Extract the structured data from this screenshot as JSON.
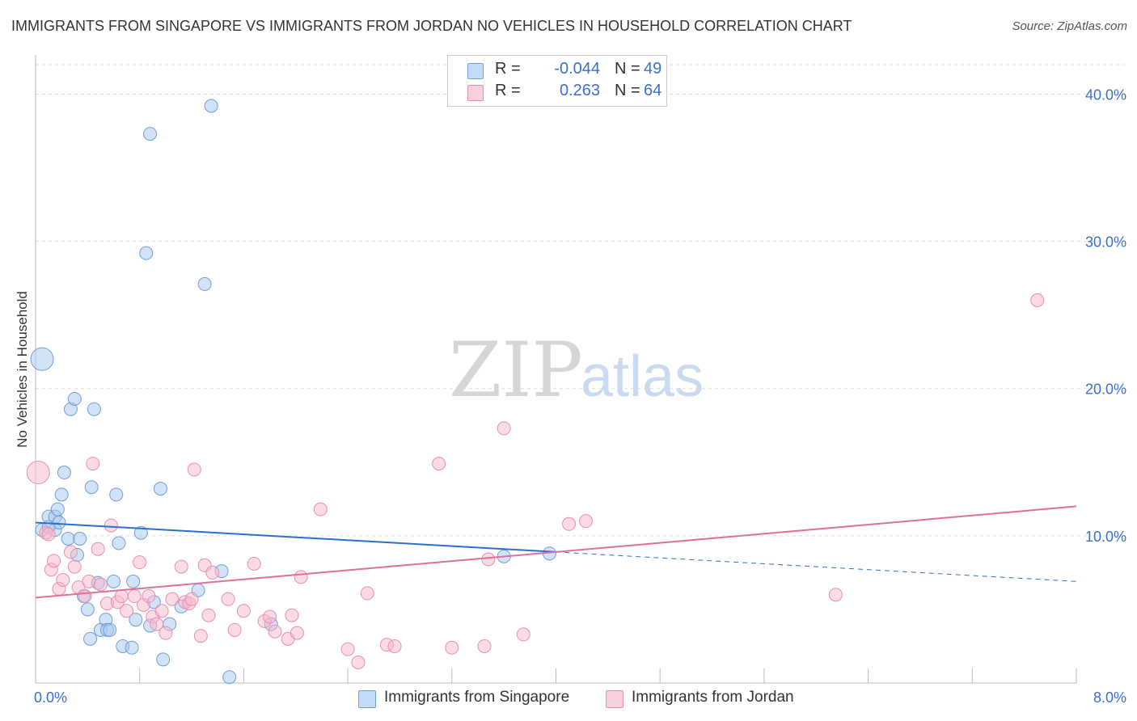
{
  "title": "IMMIGRANTS FROM SINGAPORE VS IMMIGRANTS FROM JORDAN NO VEHICLES IN HOUSEHOLD CORRELATION CHART",
  "source": "Source: ZipAtlas.com",
  "watermark": {
    "zip": "ZIP",
    "atlas": "atlas"
  },
  "legend": {
    "r_label": "R =",
    "n_label": "N =",
    "rows": [
      {
        "r": "-0.044",
        "n": "49",
        "color": "#a8c8f0"
      },
      {
        "r": "0.263",
        "n": "64",
        "color": "#f7b8cc"
      }
    ]
  },
  "bottom_legend": [
    "Immigrants from Singapore",
    "Immigrants from Jordan"
  ],
  "colors": {
    "singapore_fill": "#a8c8f0",
    "singapore_stroke": "#6f9fd8",
    "singapore_line": "#2d6fcf",
    "jordan_fill": "#f7b8cc",
    "jordan_stroke": "#e890aa",
    "jordan_line": "#e0709a",
    "tick_text": "#3b6fd1",
    "grid": "#dddddd"
  },
  "chart_data": {
    "type": "scatter",
    "title": "IMMIGRANTS FROM SINGAPORE VS IMMIGRANTS FROM JORDAN NO VEHICLES IN HOUSEHOLD CORRELATION CHART",
    "xlabel": "",
    "ylabel": "No Vehicles in Household",
    "xlim": [
      0,
      8
    ],
    "ylim": [
      0,
      42
    ],
    "x_ticks": [
      0,
      8
    ],
    "x_tick_labels": [
      "0.0%",
      "8.0%"
    ],
    "y_ticks": [
      10,
      20,
      30,
      40
    ],
    "y_tick_labels": [
      "10.0%",
      "20.0%",
      "30.0%",
      "40.0%"
    ],
    "grid": true,
    "legend_position": "top-center",
    "series": [
      {
        "name": "Immigrants from Singapore",
        "trend": {
          "x": [
            0.0,
            4.0,
            8.0
          ],
          "y": [
            10.9,
            8.9,
            6.9
          ],
          "solid_until_x": 4.0
        },
        "points": [
          {
            "x": 0.05,
            "y": 10.4
          },
          {
            "x": 0.05,
            "y": 22.0,
            "big": true
          },
          {
            "x": 0.1,
            "y": 11.3
          },
          {
            "x": 0.15,
            "y": 10.4
          },
          {
            "x": 0.15,
            "y": 11.3
          },
          {
            "x": 0.17,
            "y": 11.8
          },
          {
            "x": 0.18,
            "y": 10.9
          },
          {
            "x": 0.2,
            "y": 12.8
          },
          {
            "x": 0.22,
            "y": 14.3
          },
          {
            "x": 0.25,
            "y": 9.8
          },
          {
            "x": 0.27,
            "y": 18.6
          },
          {
            "x": 0.3,
            "y": 19.3
          },
          {
            "x": 0.32,
            "y": 8.7
          },
          {
            "x": 0.34,
            "y": 9.8
          },
          {
            "x": 0.37,
            "y": 5.9
          },
          {
            "x": 0.4,
            "y": 5.0
          },
          {
            "x": 0.42,
            "y": 3.0
          },
          {
            "x": 0.43,
            "y": 13.3
          },
          {
            "x": 0.45,
            "y": 18.6
          },
          {
            "x": 0.48,
            "y": 6.8
          },
          {
            "x": 0.5,
            "y": 3.6
          },
          {
            "x": 0.54,
            "y": 4.3
          },
          {
            "x": 0.55,
            "y": 3.6
          },
          {
            "x": 0.57,
            "y": 3.6
          },
          {
            "x": 0.6,
            "y": 6.9
          },
          {
            "x": 0.62,
            "y": 12.8
          },
          {
            "x": 0.64,
            "y": 9.5
          },
          {
            "x": 0.67,
            "y": 2.5
          },
          {
            "x": 0.74,
            "y": 2.4
          },
          {
            "x": 0.75,
            "y": 6.9
          },
          {
            "x": 0.77,
            "y": 4.3
          },
          {
            "x": 0.81,
            "y": 10.2
          },
          {
            "x": 0.85,
            "y": 29.2
          },
          {
            "x": 0.88,
            "y": 37.3
          },
          {
            "x": 0.88,
            "y": 3.9
          },
          {
            "x": 0.91,
            "y": 5.5
          },
          {
            "x": 0.96,
            "y": 13.2
          },
          {
            "x": 0.98,
            "y": 1.6
          },
          {
            "x": 1.03,
            "y": 4.0
          },
          {
            "x": 1.12,
            "y": 5.2
          },
          {
            "x": 1.25,
            "y": 6.3
          },
          {
            "x": 1.3,
            "y": 27.1
          },
          {
            "x": 1.35,
            "y": 39.2
          },
          {
            "x": 1.43,
            "y": 7.6
          },
          {
            "x": 1.49,
            "y": 0.4
          },
          {
            "x": 1.81,
            "y": 4.0
          },
          {
            "x": 3.6,
            "y": 8.6
          },
          {
            "x": 3.95,
            "y": 8.8
          },
          {
            "x": 0.1,
            "y": 10.6
          }
        ]
      },
      {
        "name": "Immigrants from Jordan",
        "trend": {
          "x": [
            0.0,
            8.0
          ],
          "y": [
            5.8,
            12.0
          ]
        },
        "points": [
          {
            "x": 0.02,
            "y": 14.3,
            "big": true
          },
          {
            "x": 0.08,
            "y": 10.2
          },
          {
            "x": 0.1,
            "y": 10.1
          },
          {
            "x": 0.12,
            "y": 7.7
          },
          {
            "x": 0.14,
            "y": 8.3
          },
          {
            "x": 0.18,
            "y": 6.4
          },
          {
            "x": 0.21,
            "y": 7.0
          },
          {
            "x": 0.27,
            "y": 8.9
          },
          {
            "x": 0.3,
            "y": 7.9
          },
          {
            "x": 0.33,
            "y": 6.5
          },
          {
            "x": 0.38,
            "y": 5.9
          },
          {
            "x": 0.41,
            "y": 6.9
          },
          {
            "x": 0.44,
            "y": 14.9
          },
          {
            "x": 0.48,
            "y": 9.1
          },
          {
            "x": 0.5,
            "y": 6.7
          },
          {
            "x": 0.55,
            "y": 5.4
          },
          {
            "x": 0.58,
            "y": 10.7
          },
          {
            "x": 0.63,
            "y": 5.5
          },
          {
            "x": 0.66,
            "y": 5.9
          },
          {
            "x": 0.7,
            "y": 4.9
          },
          {
            "x": 0.76,
            "y": 5.9
          },
          {
            "x": 0.8,
            "y": 8.2
          },
          {
            "x": 0.83,
            "y": 5.3
          },
          {
            "x": 0.87,
            "y": 5.9
          },
          {
            "x": 0.9,
            "y": 4.5
          },
          {
            "x": 0.93,
            "y": 4.0
          },
          {
            "x": 0.97,
            "y": 4.9
          },
          {
            "x": 1.0,
            "y": 3.4
          },
          {
            "x": 1.05,
            "y": 5.7
          },
          {
            "x": 1.12,
            "y": 7.9
          },
          {
            "x": 1.15,
            "y": 5.5
          },
          {
            "x": 1.18,
            "y": 5.4
          },
          {
            "x": 1.2,
            "y": 5.7
          },
          {
            "x": 1.22,
            "y": 14.5
          },
          {
            "x": 1.27,
            "y": 3.2
          },
          {
            "x": 1.3,
            "y": 8.0
          },
          {
            "x": 1.33,
            "y": 4.6
          },
          {
            "x": 1.36,
            "y": 7.5
          },
          {
            "x": 1.48,
            "y": 5.7
          },
          {
            "x": 1.53,
            "y": 3.6
          },
          {
            "x": 1.6,
            "y": 4.9
          },
          {
            "x": 1.68,
            "y": 8.1
          },
          {
            "x": 1.76,
            "y": 4.2
          },
          {
            "x": 1.8,
            "y": 4.5
          },
          {
            "x": 1.84,
            "y": 3.5
          },
          {
            "x": 1.94,
            "y": 3.0
          },
          {
            "x": 1.97,
            "y": 4.6
          },
          {
            "x": 2.01,
            "y": 3.4
          },
          {
            "x": 2.04,
            "y": 7.2
          },
          {
            "x": 2.19,
            "y": 11.8
          },
          {
            "x": 2.4,
            "y": 2.3
          },
          {
            "x": 2.48,
            "y": 1.4
          },
          {
            "x": 2.55,
            "y": 6.1
          },
          {
            "x": 2.7,
            "y": 2.6
          },
          {
            "x": 2.76,
            "y": 2.5
          },
          {
            "x": 3.1,
            "y": 14.9
          },
          {
            "x": 3.2,
            "y": 2.4
          },
          {
            "x": 3.45,
            "y": 2.5
          },
          {
            "x": 3.48,
            "y": 8.4
          },
          {
            "x": 3.6,
            "y": 17.3
          },
          {
            "x": 3.75,
            "y": 3.3
          },
          {
            "x": 4.1,
            "y": 10.8
          },
          {
            "x": 4.23,
            "y": 11.0
          },
          {
            "x": 6.15,
            "y": 6.0
          },
          {
            "x": 7.7,
            "y": 26.0
          }
        ]
      }
    ]
  }
}
